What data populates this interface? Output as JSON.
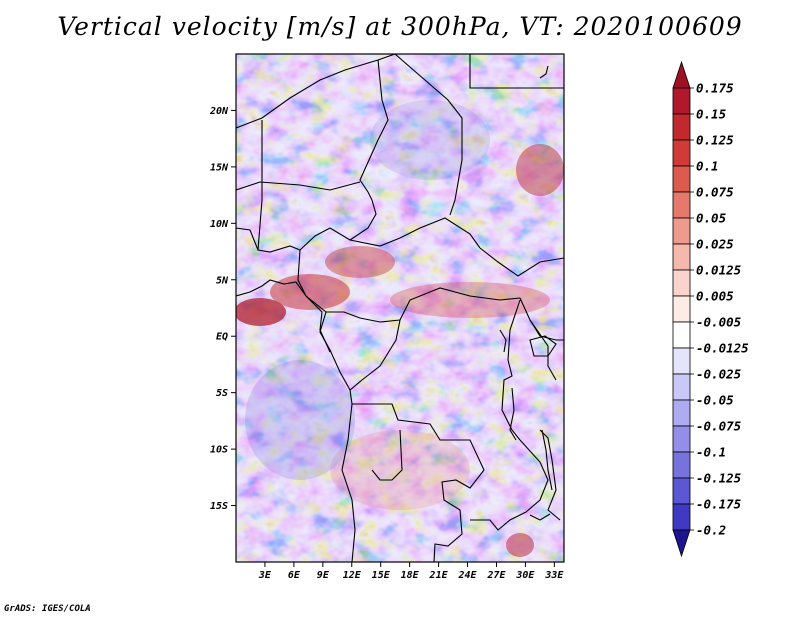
{
  "title": "Vertical velocity [m/s] at 300hPa, VT: 2020100609",
  "credit": "GrADS: IGES/COLA",
  "map": {
    "variable": "Vertical velocity",
    "units": "m/s",
    "level": "300hPa",
    "valid_time": "2020100609",
    "lat_range": [
      -20,
      25
    ],
    "lon_range": [
      0,
      34
    ],
    "lat_ticks": [
      {
        "value": 20,
        "label": "20N"
      },
      {
        "value": 15,
        "label": "15N"
      },
      {
        "value": 10,
        "label": "10N"
      },
      {
        "value": 5,
        "label": "5N"
      },
      {
        "value": 0,
        "label": "EQ"
      },
      {
        "value": -5,
        "label": "5S"
      },
      {
        "value": -10,
        "label": "10S"
      },
      {
        "value": -15,
        "label": "15S"
      }
    ],
    "lon_ticks": [
      {
        "value": 3,
        "label": "3E"
      },
      {
        "value": 6,
        "label": "6E"
      },
      {
        "value": 9,
        "label": "9E"
      },
      {
        "value": 12,
        "label": "12E"
      },
      {
        "value": 15,
        "label": "15E"
      },
      {
        "value": 18,
        "label": "18E"
      },
      {
        "value": 21,
        "label": "21E"
      },
      {
        "value": 24,
        "label": "24E"
      },
      {
        "value": 27,
        "label": "27E"
      },
      {
        "value": 30,
        "label": "30E"
      },
      {
        "value": 33,
        "label": "33E"
      }
    ]
  },
  "colorbar": {
    "levels": [
      {
        "label": "0.175",
        "color": "#b2182b"
      },
      {
        "label": "0.15",
        "color": "#c1292e"
      },
      {
        "label": "0.125",
        "color": "#d03b37"
      },
      {
        "label": "0.1",
        "color": "#dc5a4e"
      },
      {
        "label": "0.075",
        "color": "#e57a6c"
      },
      {
        "label": "0.05",
        "color": "#ee9a8d"
      },
      {
        "label": "0.025",
        "color": "#f5b8ad"
      },
      {
        "label": "0.0125",
        "color": "#fad4cc"
      },
      {
        "label": "0.005",
        "color": "#fdebe6"
      },
      {
        "label": "-0.005",
        "color": "#ffffff"
      },
      {
        "label": "-0.0125",
        "color": "#e4e4fb"
      },
      {
        "label": "-0.025",
        "color": "#c9c8f6"
      },
      {
        "label": "-0.05",
        "color": "#aeabf0"
      },
      {
        "label": "-0.075",
        "color": "#938fe8"
      },
      {
        "label": "-0.1",
        "color": "#7773dd"
      },
      {
        "label": "-0.125",
        "color": "#5c57d2"
      },
      {
        "label": "-0.175",
        "color": "#3f39c4"
      },
      {
        "label": "-0.2",
        "color": "#2a22b0"
      }
    ],
    "top_cap_color": "#9e1024",
    "bottom_cap_color": "#1e1490"
  }
}
